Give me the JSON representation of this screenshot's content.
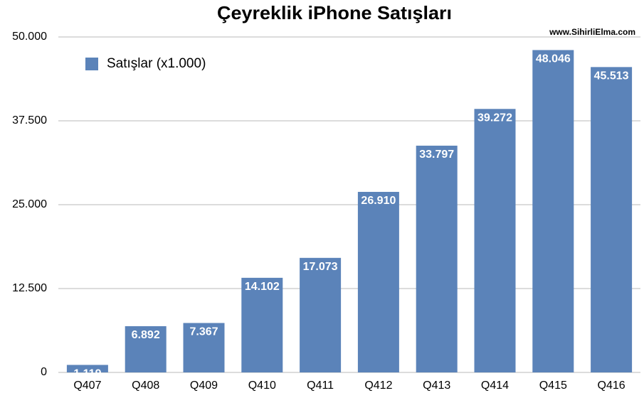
{
  "chart_data": {
    "type": "bar",
    "title": "Çeyreklik iPhone Satışları",
    "source": "www.SihirliElma.com",
    "categories": [
      "Q407",
      "Q408",
      "Q409",
      "Q410",
      "Q411",
      "Q412",
      "Q413",
      "Q414",
      "Q415",
      "Q416"
    ],
    "series": [
      {
        "name": "Satışlar (x1.000)",
        "color": "#5b83b9",
        "values": [
          1119,
          6892,
          7367,
          14102,
          17073,
          26910,
          33797,
          39272,
          48046,
          45513
        ],
        "value_labels": [
          "1.119",
          "6.892",
          "7.367",
          "14.102",
          "17.073",
          "26.910",
          "33.797",
          "39.272",
          "48.046",
          "45.513"
        ]
      }
    ],
    "ylim": [
      0,
      50000
    ],
    "yticks": [
      0,
      {
        "value": 12500,
        "label": "12.500"
      },
      {
        "value": 25000,
        "label": "25.000"
      },
      {
        "value": 37500,
        "label": "37.500"
      },
      {
        "value": 50000,
        "label": "50.000"
      }
    ],
    "grid": true,
    "legend": "top-left"
  }
}
